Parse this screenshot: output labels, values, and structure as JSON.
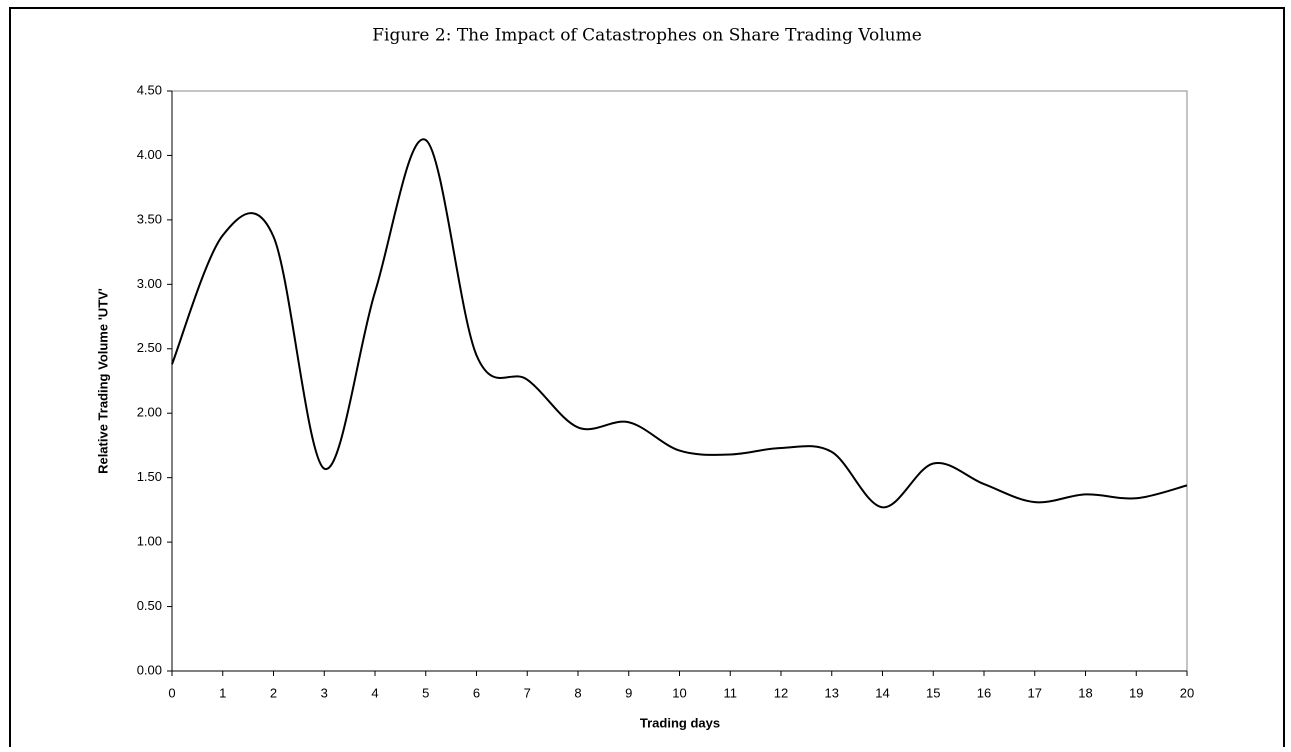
{
  "chart_data": {
    "type": "line",
    "title": "Figure 2:  The Impact of Catastrophes on Share Trading Volume",
    "xlabel": "Trading days",
    "ylabel": "Relative Trading Volume 'UTV'",
    "x": [
      0,
      1,
      2,
      3,
      4,
      5,
      6,
      7,
      8,
      9,
      10,
      11,
      12,
      13,
      14,
      15,
      16,
      17,
      18,
      19,
      20
    ],
    "series": [
      {
        "name": "UTV",
        "color": "#000000",
        "values": [
          2.38,
          3.38,
          3.37,
          1.57,
          2.94,
          4.12,
          2.45,
          2.26,
          1.89,
          1.93,
          1.71,
          1.68,
          1.73,
          1.7,
          1.27,
          1.61,
          1.45,
          1.31,
          1.37,
          1.34,
          1.44
        ]
      }
    ],
    "xlim": [
      0,
      20
    ],
    "xticks": [
      0,
      1,
      2,
      3,
      4,
      5,
      6,
      7,
      8,
      9,
      10,
      11,
      12,
      13,
      14,
      15,
      16,
      17,
      18,
      19,
      20
    ],
    "ylim": [
      0,
      4.5
    ],
    "yticks": [
      {
        "value": 0,
        "label": "0.00"
      },
      {
        "value": 0.5,
        "label": "0.50"
      },
      {
        "value": 1,
        "label": "1.00"
      },
      {
        "value": 1.5,
        "label": "1.50"
      },
      {
        "value": 2,
        "label": "2.00"
      },
      {
        "value": 2.5,
        "label": "2.50"
      },
      {
        "value": 3,
        "label": "3.00"
      },
      {
        "value": 3.5,
        "label": "3.50"
      },
      {
        "value": 4,
        "label": "4.00"
      },
      {
        "value": 4.5,
        "label": "4.50"
      }
    ],
    "grid": false
  }
}
